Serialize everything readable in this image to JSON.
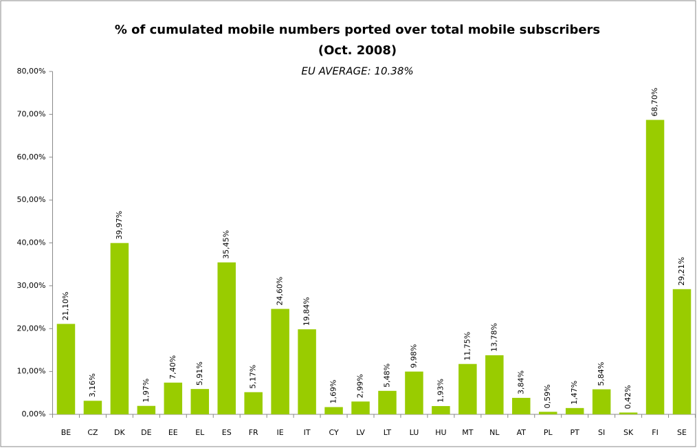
{
  "chart_data": {
    "type": "bar",
    "title": "% of cumulated mobile numbers ported over total mobile subscribers",
    "title_line2": "(Oct. 2008)",
    "subtitle": "EU AVERAGE: 10.38%",
    "categories": [
      "BE",
      "CZ",
      "DK",
      "DE",
      "EE",
      "EL",
      "ES",
      "FR",
      "IE",
      "IT",
      "CY",
      "LV",
      "LT",
      "LU",
      "HU",
      "MT",
      "NL",
      "AT",
      "PL",
      "PT",
      "SI",
      "SK",
      "FI",
      "SE"
    ],
    "values": [
      21.1,
      3.16,
      39.97,
      1.97,
      7.4,
      5.91,
      35.45,
      5.17,
      24.6,
      19.84,
      1.69,
      2.99,
      5.48,
      9.98,
      1.93,
      11.75,
      13.78,
      3.84,
      0.59,
      1.47,
      5.84,
      0.42,
      68.7,
      29.21
    ],
    "value_labels": [
      "21,10%",
      "3,16%",
      "39,97%",
      "1,97%",
      "7,40%",
      "5,91%",
      "35,45%",
      "5,17%",
      "24,60%",
      "19,84%",
      "1,69%",
      "2,99%",
      "5,48%",
      "9,98%",
      "1,93%",
      "11,75%",
      "13,78%",
      "3,84%",
      "0,59%",
      "1,47%",
      "5,84%",
      "0,42%",
      "68,70%",
      "29,21%"
    ],
    "color": "#99cc00",
    "ylim": [
      0,
      80
    ],
    "yticks": [
      {
        "value": 0,
        "label": "0,00%"
      },
      {
        "value": 10,
        "label": "10,00%"
      },
      {
        "value": 20,
        "label": "20,00%"
      },
      {
        "value": 30,
        "label": "30,00%"
      },
      {
        "value": 40,
        "label": "40,00%"
      },
      {
        "value": 50,
        "label": "50,00%"
      },
      {
        "value": 60,
        "label": "60,00%"
      },
      {
        "value": 70,
        "label": "70,00%"
      },
      {
        "value": 80,
        "label": "80,00%"
      }
    ],
    "grid": false
  }
}
